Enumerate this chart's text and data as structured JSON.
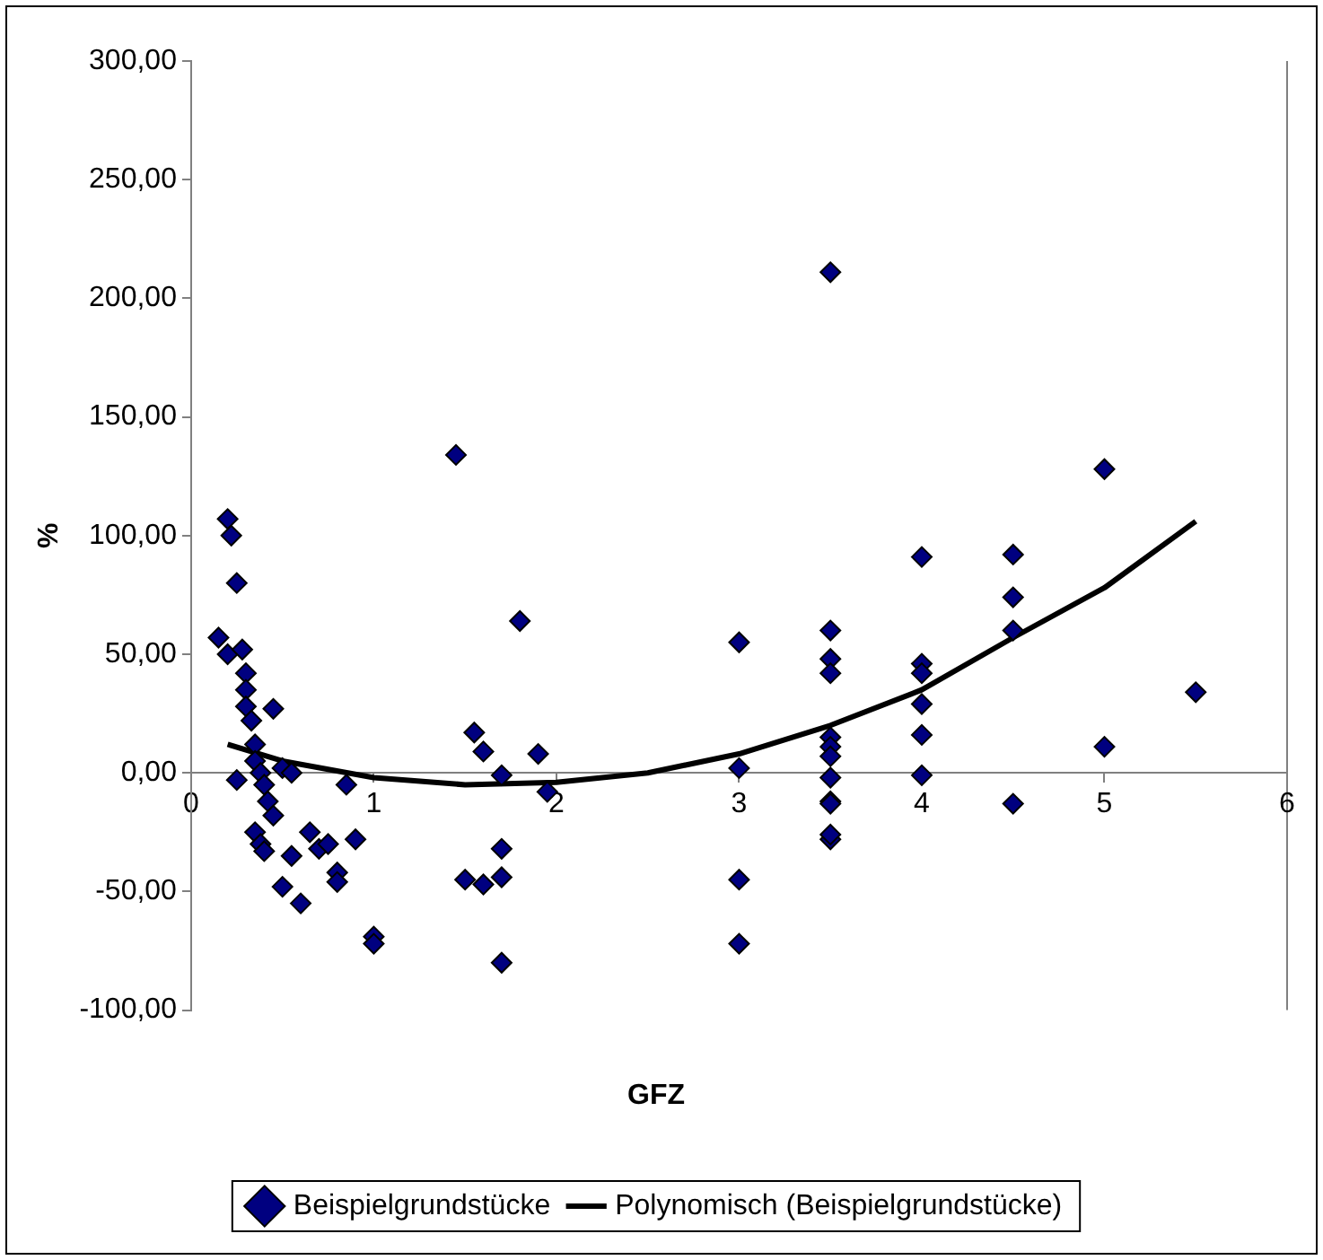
{
  "chart_data": {
    "type": "scatter",
    "xlabel": "GFZ",
    "ylabel": "%",
    "xlim": [
      0,
      6
    ],
    "xticks": [
      0,
      1,
      2,
      3,
      4,
      5,
      6
    ],
    "ylim": [
      -100,
      300
    ],
    "yticks": [
      {
        "value": -100,
        "label": "-100,00"
      },
      {
        "value": -50,
        "label": "-50,00"
      },
      {
        "value": 0,
        "label": "0,00"
      },
      {
        "value": 50,
        "label": "50,00"
      },
      {
        "value": 100,
        "label": "100,00"
      },
      {
        "value": 150,
        "label": "150,00"
      },
      {
        "value": 200,
        "label": "200,00"
      },
      {
        "value": 250,
        "label": "250,00"
      },
      {
        "value": 300,
        "label": "300,00"
      }
    ],
    "grid": false,
    "legend": "bottom",
    "series": [
      {
        "name": "Beispielgrundstücke",
        "marker": "diamond",
        "color": "#000080",
        "x": [
          0.15,
          0.2,
          0.22,
          0.25,
          0.2,
          0.28,
          0.25,
          0.3,
          0.3,
          0.3,
          0.33,
          0.35,
          0.35,
          0.38,
          0.4,
          0.42,
          0.35,
          0.38,
          0.4,
          0.45,
          0.45,
          0.5,
          0.55,
          0.6,
          0.5,
          0.55,
          0.65,
          0.7,
          0.75,
          0.8,
          0.8,
          0.85,
          0.9,
          1.0,
          1.0,
          1.45,
          1.55,
          1.5,
          1.6,
          1.6,
          1.7,
          1.7,
          1.7,
          1.7,
          1.8,
          1.9,
          1.95,
          3,
          3,
          3,
          3,
          3.5,
          3.5,
          3.5,
          3.5,
          3.5,
          3.5,
          3.5,
          3.5,
          3.5,
          3.5,
          3.5,
          3.5,
          4,
          4,
          4,
          4,
          4,
          4,
          4.5,
          4.5,
          4.5,
          4.5,
          5,
          5,
          5.5
        ],
        "values": [
          57,
          107,
          100,
          80,
          50,
          52,
          -3,
          42,
          35,
          28,
          22,
          12,
          5,
          0,
          -5,
          -12,
          -25,
          -30,
          -33,
          -18,
          27,
          -48,
          -35,
          -55,
          2,
          0,
          -25,
          -32,
          -30,
          -42,
          -46,
          -5,
          -28,
          -69,
          -72,
          134,
          17,
          -45,
          9,
          -47,
          -1,
          -32,
          -44,
          -80,
          64,
          8,
          -8,
          55,
          2,
          -45,
          -72,
          211,
          60,
          48,
          42,
          15,
          11,
          7,
          -2,
          -12,
          -13,
          -28,
          -26,
          91,
          46,
          42,
          29,
          16,
          -1,
          92,
          74,
          60,
          -13,
          128,
          11,
          34
        ]
      },
      {
        "name": "Polynomisch (Beispielgrundstücke)",
        "type": "line",
        "marker": "none",
        "line_style": "solid",
        "color": "#000000",
        "x": [
          0.2,
          0.5,
          1,
          1.5,
          2,
          2.5,
          3,
          3.5,
          4,
          4.5,
          5,
          5.5
        ],
        "values": [
          12,
          5,
          -2,
          -5,
          -4,
          0,
          8,
          20,
          35,
          57,
          78,
          106
        ]
      }
    ]
  }
}
